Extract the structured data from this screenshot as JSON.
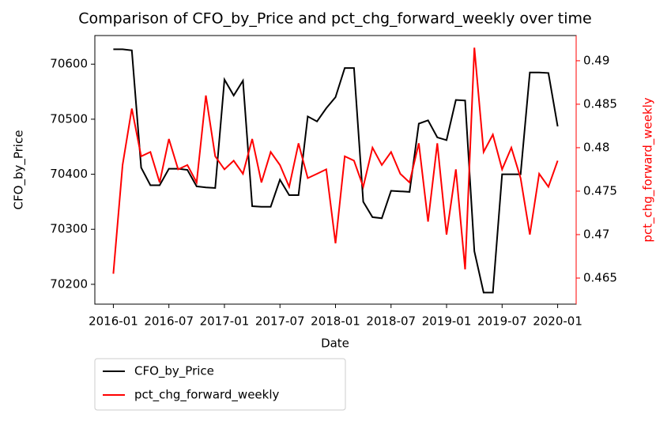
{
  "chart_data": {
    "type": "line",
    "title": "Comparison of CFO_by_Price and pct_chg_forward_weekly over time",
    "xlabel": "Date",
    "ylabel": "CFO_by_Price",
    "y2label": "pct_chg_forward_weekly",
    "x": [
      "2016-01",
      "2016-02",
      "2016-03",
      "2016-04",
      "2016-05",
      "2016-06",
      "2016-07",
      "2016-08",
      "2016-09",
      "2016-10",
      "2016-11",
      "2016-12",
      "2017-01",
      "2017-02",
      "2017-03",
      "2017-04",
      "2017-05",
      "2017-06",
      "2017-07",
      "2017-08",
      "2017-09",
      "2017-10",
      "2017-11",
      "2017-12",
      "2018-01",
      "2018-02",
      "2018-03",
      "2018-04",
      "2018-05",
      "2018-06",
      "2018-07",
      "2018-08",
      "2018-09",
      "2018-10",
      "2018-11",
      "2018-12",
      "2019-01",
      "2019-02",
      "2019-03",
      "2019-04",
      "2019-05",
      "2019-06",
      "2019-07",
      "2019-08",
      "2019-09",
      "2019-10",
      "2019-11",
      "2019-12",
      "2020-01"
    ],
    "series": [
      {
        "name": "CFO_by_Price",
        "color": "#000000",
        "axis": "y",
        "values": [
          70627,
          70627,
          70625,
          70412,
          70380,
          70380,
          70410,
          70410,
          70408,
          70378,
          70376,
          70375,
          70572,
          70543,
          70570,
          70342,
          70341,
          70341,
          70390,
          70362,
          70362,
          70505,
          70496,
          70520,
          70540,
          70593,
          70593,
          70350,
          70322,
          70320,
          70370,
          70369,
          70368,
          70492,
          70498,
          70467,
          70462,
          70535,
          70534,
          70260,
          70185,
          70185,
          70400,
          70400,
          70400,
          70585,
          70585,
          70584,
          70487
        ]
      },
      {
        "name": "pct_chg_forward_weekly",
        "color": "#ff0000",
        "axis": "y2",
        "values": [
          0.4655,
          0.478,
          0.4845,
          0.479,
          0.4795,
          0.476,
          0.481,
          0.4775,
          0.478,
          0.476,
          0.486,
          0.479,
          0.4775,
          0.4785,
          0.477,
          0.481,
          0.476,
          0.4795,
          0.478,
          0.4755,
          0.4805,
          0.4765,
          0.477,
          0.4775,
          0.469,
          0.479,
          0.4785,
          0.4755,
          0.48,
          0.478,
          0.4795,
          0.477,
          0.476,
          0.4805,
          0.4715,
          0.4805,
          0.47,
          0.4775,
          0.466,
          0.4915,
          0.4795,
          0.4815,
          0.4775,
          0.48,
          0.4765,
          0.47,
          0.477,
          0.4755,
          0.4785
        ]
      }
    ],
    "xlim": [
      "2015-11",
      "2020-03"
    ],
    "xticks": [
      "2016-01",
      "2016-07",
      "2017-01",
      "2017-07",
      "2018-01",
      "2018-07",
      "2019-01",
      "2019-07",
      "2020-01"
    ],
    "ylim": [
      70164,
      70652
    ],
    "yticks": [
      70200,
      70300,
      70400,
      70500,
      70600
    ],
    "y2lim": [
      0.462,
      0.4929
    ],
    "y2ticks": [
      0.465,
      0.47,
      0.475,
      0.48,
      0.485,
      0.49
    ],
    "y2color": "#ff0000",
    "legend": "below"
  }
}
